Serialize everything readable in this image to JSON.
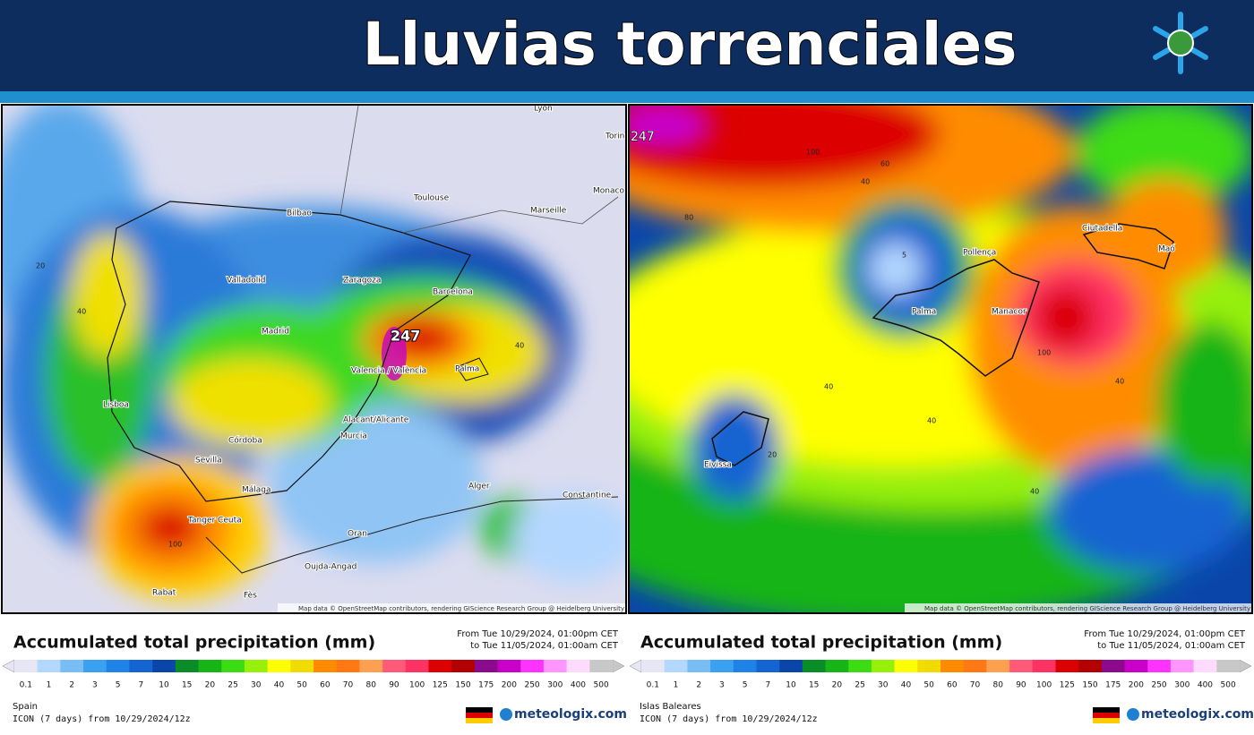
{
  "header": {
    "title": "Lluvias torrenciales"
  },
  "legend": {
    "ticks": [
      0.1,
      1,
      2,
      3,
      5,
      7,
      10,
      15,
      20,
      25,
      30,
      40,
      50,
      60,
      70,
      80,
      90,
      100,
      125,
      150,
      175,
      200,
      250,
      300,
      400,
      500
    ],
    "colors": [
      "#e6e6f5",
      "#b4d7ff",
      "#78bef5",
      "#3ca0f0",
      "#1e82e6",
      "#1464d2",
      "#0a46aa",
      "#0a8c28",
      "#16b416",
      "#3cdc14",
      "#96f00a",
      "#ffff00",
      "#f0dc00",
      "#ff8c00",
      "#ff7814",
      "#ffa050",
      "#ff5a78",
      "#ff3264",
      "#dc0000",
      "#b40000",
      "#8c0a8c",
      "#c800c8",
      "#ff32ff",
      "#ff96ff",
      "#ffdcff",
      "#c8c8c8"
    ]
  },
  "panels": [
    {
      "labels": [
        "Lyon",
        "Torino",
        "Toulouse",
        "Bilbao",
        "Marseille",
        "Monaco",
        "Valladolid",
        "Zaragoza",
        "Barcelona",
        "Madrid",
        "Valencia / València",
        "Palma",
        "Lisboa",
        "Alacant/Alicante",
        "Murcia",
        "Córdoba",
        "Sevilla",
        "Málaga",
        "Alger",
        "Constantine",
        "Tanger Ceuta",
        "Oran",
        "Oujda-Angad",
        "Rabat",
        "Fès",
        "247",
        "100",
        "40",
        "20",
        "40"
      ],
      "attribution": "Map data © OpenStreetMap contributors, rendering GIScience Research Group @ Heidelberg University",
      "legend_title": "Accumulated total precipitation (mm)",
      "date_from": "From Tue 10/29/2024, 01:00pm CET",
      "date_to": "to Tue 11/05/2024, 01:00am CET",
      "region": "Spain",
      "model": "ICON (7 days) from 10/29/2024/12z",
      "brand": "meteologix.com"
    },
    {
      "labels": [
        "Ciutadella",
        "Maó",
        "Pollença",
        "Palma",
        "Manacor",
        "Eivissa",
        "247",
        "100",
        "60",
        "80",
        "40",
        "5",
        "100",
        "40",
        "40",
        "40",
        "20",
        "40"
      ],
      "attribution": "Map data © OpenStreetMap contributors, rendering GIScience Research Group @ Heidelberg University",
      "legend_title": "Accumulated total precipitation (mm)",
      "date_from": "From Tue 10/29/2024, 01:00pm CET",
      "date_to": "to Tue 11/05/2024, 01:00am CET",
      "region": "Islas Baleares",
      "model": "ICON (7 days) from 10/29/2024/12z",
      "brand": "meteologix.com"
    }
  ]
}
